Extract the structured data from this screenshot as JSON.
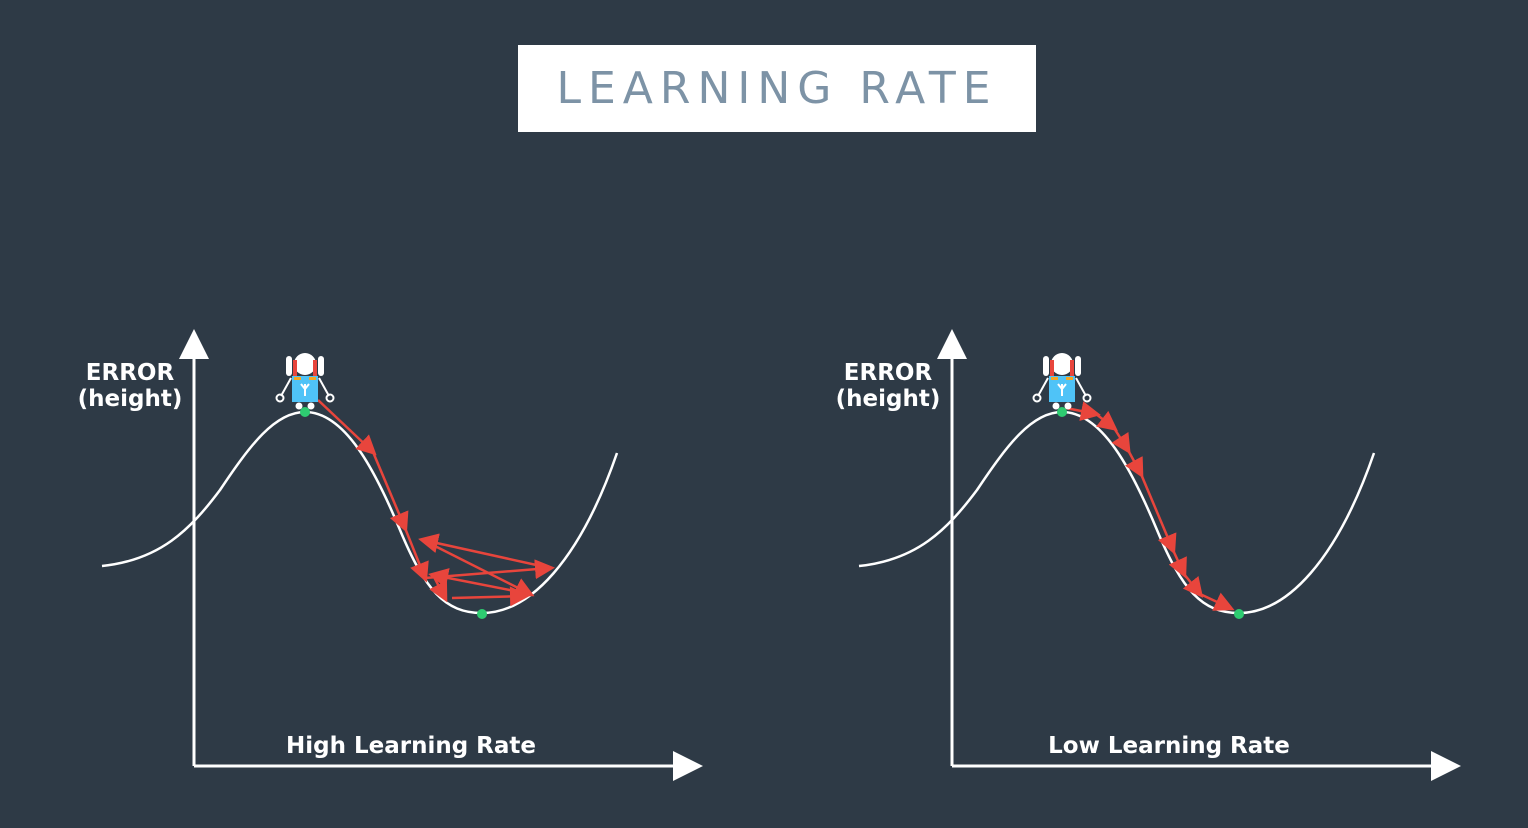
{
  "title": "LEARNING RATE",
  "panels": [
    {
      "name": "high",
      "y_label_line1": "ERROR",
      "y_label_line2": "(height)",
      "x_label": "High Learning Rate"
    },
    {
      "name": "low",
      "y_label_line1": "ERROR",
      "y_label_line2": "(height)",
      "x_label": "Low Learning Rate"
    }
  ],
  "colors": {
    "background": "#2e3a46",
    "curve": "#ffffff",
    "arrow": "#e8453c",
    "point": "#2ecc71",
    "title_text": "#7d93a6",
    "robot_body": "#4fc3f7"
  },
  "icons": [
    "robot-icon",
    "arrow-icon"
  ]
}
